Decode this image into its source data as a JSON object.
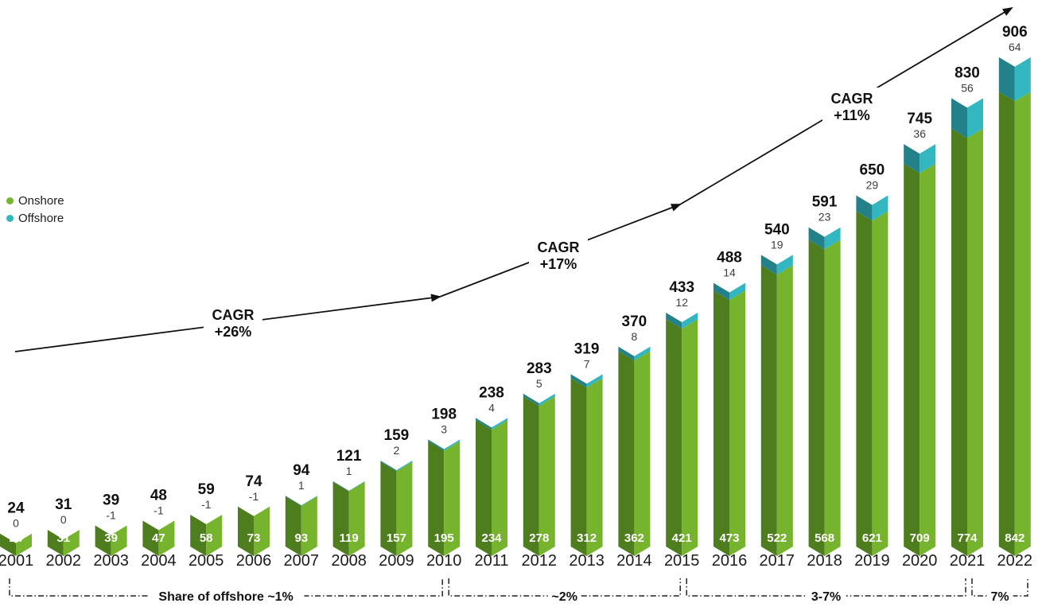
{
  "legend": {
    "items": [
      {
        "label": "Onshore",
        "color": "#76b82d"
      },
      {
        "label": "Offshore",
        "color": "#32b6c0"
      }
    ]
  },
  "chart_data": {
    "type": "bar",
    "stacked": true,
    "grid": false,
    "legend_position": "left-middle",
    "ylim": [
      0,
      960
    ],
    "categories": [
      "2001",
      "2002",
      "2003",
      "2004",
      "2005",
      "2006",
      "2007",
      "2008",
      "2009",
      "2010",
      "2011",
      "2012",
      "2013",
      "2014",
      "2015",
      "2016",
      "2017",
      "2018",
      "2019",
      "2020",
      "2021",
      "2022"
    ],
    "series": [
      {
        "name": "Onshore",
        "colors": {
          "left": "#4e7d1e",
          "right": "#77b42d"
        },
        "values": [
          24,
          31,
          39,
          47,
          58,
          73,
          93,
          119,
          157,
          195,
          234,
          278,
          312,
          362,
          421,
          473,
          522,
          568,
          621,
          709,
          774,
          842
        ]
      },
      {
        "name": "Offshore",
        "colors": {
          "left": "#23818a",
          "right": "#32b6c0"
        },
        "values": [
          0,
          0,
          -1,
          -1,
          -1,
          -1,
          1,
          1,
          2,
          3,
          4,
          5,
          7,
          8,
          12,
          14,
          19,
          23,
          29,
          36,
          56,
          64
        ]
      }
    ],
    "totals": [
      24,
      31,
      39,
      48,
      59,
      74,
      94,
      121,
      159,
      198,
      238,
      283,
      319,
      370,
      433,
      488,
      540,
      591,
      650,
      745,
      830,
      906
    ],
    "annotations": {
      "cagr": [
        {
          "title": "CAGR",
          "value": "+26%"
        },
        {
          "title": "CAGR",
          "value": "+17%"
        },
        {
          "title": "CAGR",
          "value": "+11%"
        }
      ],
      "share_brackets": [
        {
          "label": "Share of offshore ~1%",
          "start_year": "2001",
          "end_year": "2010"
        },
        {
          "label": "~2%",
          "start_year": "2010",
          "end_year": "2015"
        },
        {
          "label": "3-7%",
          "start_year": "2015",
          "end_year": "2021"
        },
        {
          "label": "7%",
          "start_year": "2021",
          "end_year": "2022"
        }
      ]
    },
    "text_colors": {
      "total": "#111111",
      "offshore_label": "#3c3c3c",
      "bar_value": "#ffffff",
      "year": "#1c1c1c",
      "lines": "#111111"
    }
  }
}
